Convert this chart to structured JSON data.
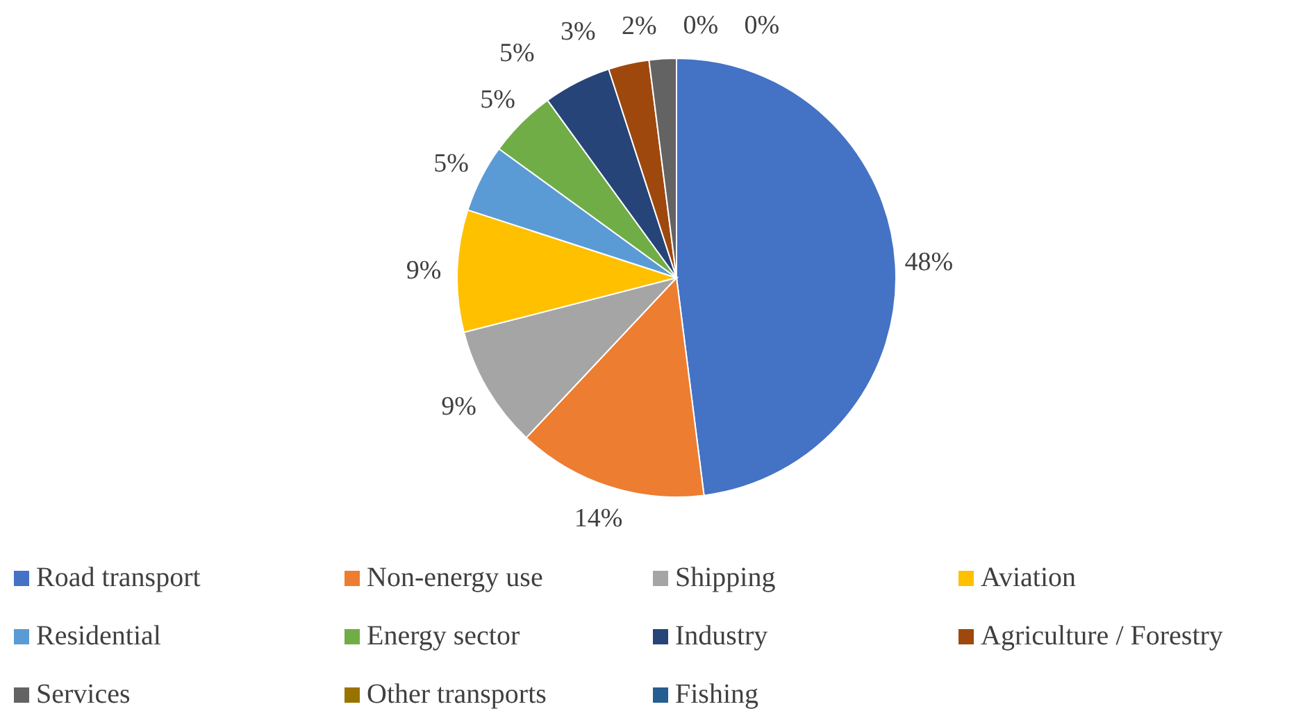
{
  "chart_data": {
    "type": "pie",
    "categories": [
      "Road transport",
      "Non-energy use",
      "Shipping",
      "Aviation",
      "Residential",
      "Energy sector",
      "Industry",
      "Agriculture / Forestry",
      "Services",
      "Other transports",
      "Fishing"
    ],
    "values": [
      48,
      14,
      9,
      9,
      5,
      5,
      5,
      3,
      2,
      0,
      0
    ],
    "value_labels": [
      "48%",
      "14%",
      "9%",
      "9%",
      "5%",
      "5%",
      "5%",
      "3%",
      "2%",
      "0%",
      "0%"
    ],
    "colors": [
      "#4472c4",
      "#ed7d31",
      "#a5a5a5",
      "#ffc000",
      "#5b9bd5",
      "#70ad47",
      "#264478",
      "#9e480e",
      "#636363",
      "#997300",
      "#255e91"
    ],
    "legend": "bottom"
  }
}
